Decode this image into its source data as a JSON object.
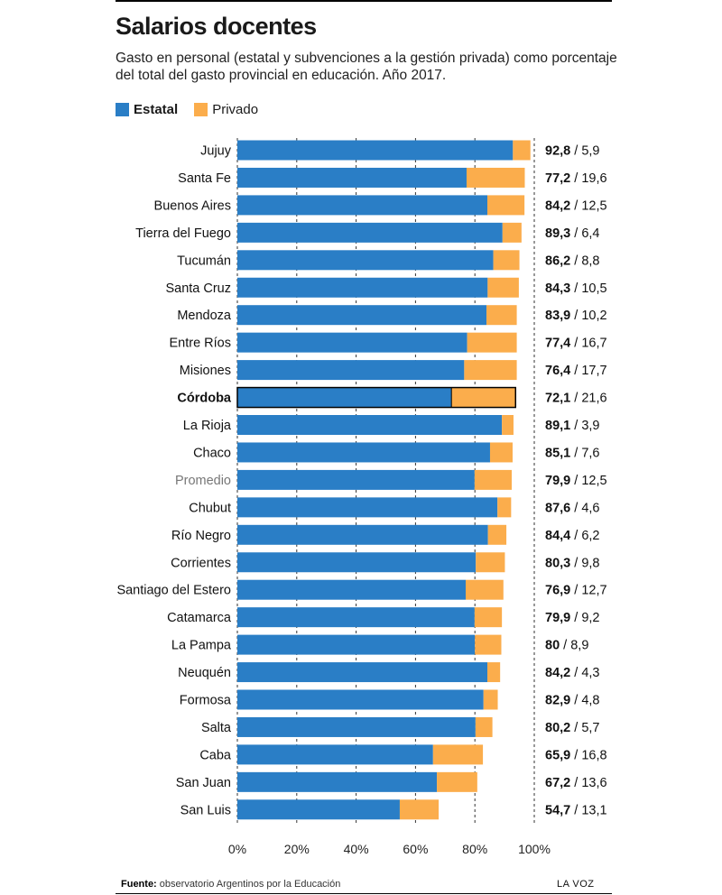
{
  "header": {
    "title": "Salarios docentes",
    "subtitle": "Gasto en personal (estatal y subvenciones a la gestión privada) como porcentaje del total del gasto provincial en educación. Año 2017."
  },
  "legend": {
    "estatal_label": "Estatal",
    "privado_label": "Privado"
  },
  "colors": {
    "estatal": "#2a7ec6",
    "privado": "#fbad4c"
  },
  "chart_data": {
    "type": "bar",
    "orientation": "horizontal",
    "stacked": true,
    "title": "Salarios docentes",
    "xlim": [
      0,
      100
    ],
    "x_ticks": [
      "0%",
      "20%",
      "40%",
      "60%",
      "80%",
      "100%"
    ],
    "grid": "vertical dashed",
    "legend_position": "top-left",
    "categories": [
      "Jujuy",
      "Santa Fe",
      "Buenos Aires",
      "Tierra del Fuego",
      "Tucumán",
      "Santa Cruz",
      "Mendoza",
      "Entre Ríos",
      "Misiones",
      "Córdoba",
      "La Rioja",
      "Chaco",
      "Promedio",
      "Chubut",
      "Río Negro",
      "Corrientes",
      "Santiago del Estero",
      "Catamarca",
      "La Pampa",
      "Neuquén",
      "Formosa",
      "Salta",
      "Caba",
      "San Juan",
      "San Luis"
    ],
    "series": [
      {
        "name": "Estatal",
        "values": [
          92.8,
          77.2,
          84.2,
          89.3,
          86.2,
          84.3,
          83.9,
          77.4,
          76.4,
          72.1,
          89.1,
          85.1,
          79.9,
          87.6,
          84.4,
          80.3,
          76.9,
          79.9,
          80,
          84.2,
          82.9,
          80.2,
          65.9,
          67.2,
          54.7
        ]
      },
      {
        "name": "Privado",
        "values": [
          5.9,
          19.6,
          12.5,
          6.4,
          8.8,
          10.5,
          10.2,
          16.7,
          17.7,
          21.6,
          3.9,
          7.6,
          12.5,
          4.6,
          6.2,
          9.8,
          12.7,
          9.2,
          8.9,
          4.3,
          4.8,
          5.7,
          16.8,
          13.6,
          13.1
        ]
      }
    ],
    "value_labels": [
      {
        "estatal": "92,8",
        "privado": "5,9"
      },
      {
        "estatal": "77,2",
        "privado": "19,6"
      },
      {
        "estatal": "84,2",
        "privado": "12,5"
      },
      {
        "estatal": "89,3",
        "privado": "6,4"
      },
      {
        "estatal": "86,2",
        "privado": "8,8"
      },
      {
        "estatal": "84,3",
        "privado": "10,5"
      },
      {
        "estatal": "83,9",
        "privado": "10,2"
      },
      {
        "estatal": "77,4",
        "privado": "16,7"
      },
      {
        "estatal": "76,4",
        "privado": "17,7"
      },
      {
        "estatal": "72,1",
        "privado": "21,6"
      },
      {
        "estatal": "89,1",
        "privado": "3,9"
      },
      {
        "estatal": "85,1",
        "privado": "7,6"
      },
      {
        "estatal": "79,9",
        "privado": "12,5"
      },
      {
        "estatal": "87,6",
        "privado": "4,6"
      },
      {
        "estatal": "84,4",
        "privado": "6,2"
      },
      {
        "estatal": "80,3",
        "privado": "9,8"
      },
      {
        "estatal": "76,9",
        "privado": "12,7"
      },
      {
        "estatal": "79,9",
        "privado": "9,2"
      },
      {
        "estatal": "80",
        "privado": "8,9"
      },
      {
        "estatal": "84,2",
        "privado": "4,3"
      },
      {
        "estatal": "82,9",
        "privado": "4,8"
      },
      {
        "estatal": "80,2",
        "privado": "5,7"
      },
      {
        "estatal": "65,9",
        "privado": "16,8"
      },
      {
        "estatal": "67,2",
        "privado": "13,6"
      },
      {
        "estatal": "54,7",
        "privado": "13,1"
      }
    ],
    "highlight": "Córdoba",
    "average": "Promedio"
  },
  "footer": {
    "source_label": "Fuente:",
    "source_text": "observatorio Argentinos por la Educación",
    "brand": "LA VOZ"
  }
}
